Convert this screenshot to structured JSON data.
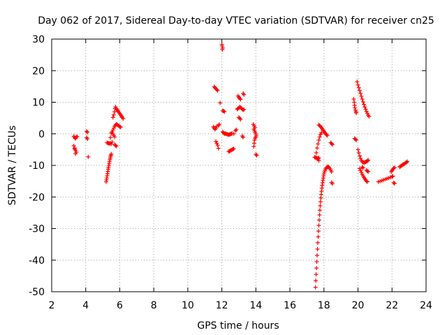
{
  "chart_data": {
    "type": "scatter",
    "title": "Day 062 of 2017, Sidereal Day-to-day VTEC variation (SDTVAR) for receiver cn25",
    "xlabel": "GPS time / hours",
    "ylabel": "SDTVAR / TECUs",
    "xlim": [
      2,
      24
    ],
    "ylim": [
      -50,
      30
    ],
    "xticks": [
      2,
      4,
      6,
      8,
      10,
      12,
      14,
      16,
      18,
      20,
      22,
      24
    ],
    "yticks": [
      -50,
      -40,
      -30,
      -20,
      -10,
      0,
      10,
      20,
      30
    ],
    "grid": true,
    "marker": "+",
    "color": "#ff0000",
    "series": [
      {
        "name": "SDTVAR",
        "points": [
          [
            3.3,
            -0.8
          ],
          [
            3.35,
            -1.2
          ],
          [
            3.4,
            -1.5
          ],
          [
            3.45,
            -1.0
          ],
          [
            3.5,
            -0.9
          ],
          [
            3.3,
            -3.8
          ],
          [
            3.35,
            -4.5
          ],
          [
            3.4,
            -5.2
          ],
          [
            3.45,
            -5.8
          ],
          [
            3.4,
            -6.3
          ],
          [
            3.35,
            -4.8
          ],
          [
            4.05,
            0.8
          ],
          [
            4.1,
            0.5
          ],
          [
            4.05,
            -1.2
          ],
          [
            4.1,
            -1.6
          ],
          [
            4.15,
            -7.3
          ],
          [
            5.2,
            -15.2
          ],
          [
            5.22,
            -14.6
          ],
          [
            5.24,
            -14.0
          ],
          [
            5.26,
            -13.3
          ],
          [
            5.28,
            -12.6
          ],
          [
            5.3,
            -11.9
          ],
          [
            5.32,
            -11.2
          ],
          [
            5.34,
            -10.6
          ],
          [
            5.36,
            -10.0
          ],
          [
            5.38,
            -9.4
          ],
          [
            5.4,
            -8.8
          ],
          [
            5.42,
            -8.2
          ],
          [
            5.44,
            -7.7
          ],
          [
            5.46,
            -7.2
          ],
          [
            5.48,
            -6.8
          ],
          [
            5.5,
            -6.4
          ],
          [
            5.25,
            -2.8
          ],
          [
            5.3,
            -2.9
          ],
          [
            5.35,
            -3.0
          ],
          [
            5.4,
            -3.1
          ],
          [
            5.45,
            -2.9
          ],
          [
            5.5,
            -3.2
          ],
          [
            5.55,
            -2.6
          ],
          [
            5.45,
            -1.2
          ],
          [
            5.5,
            0.2
          ],
          [
            5.55,
            0.6
          ],
          [
            5.6,
            0.0
          ],
          [
            5.65,
            -0.5
          ],
          [
            5.7,
            -1.0
          ],
          [
            5.6,
            1.2
          ],
          [
            5.65,
            1.8
          ],
          [
            5.7,
            2.4
          ],
          [
            5.75,
            2.8
          ],
          [
            5.8,
            3.0
          ],
          [
            5.85,
            2.9
          ],
          [
            5.9,
            2.7
          ],
          [
            5.95,
            2.5
          ],
          [
            6.0,
            2.3
          ],
          [
            6.05,
            2.1
          ],
          [
            5.7,
            -3.4
          ],
          [
            5.75,
            -3.7
          ],
          [
            5.8,
            -3.9
          ],
          [
            5.6,
            5.2
          ],
          [
            5.65,
            6.0
          ],
          [
            5.7,
            7.0
          ],
          [
            5.72,
            8.0
          ],
          [
            5.75,
            8.5
          ],
          [
            5.8,
            8.0
          ],
          [
            5.85,
            7.6
          ],
          [
            5.9,
            7.2
          ],
          [
            5.95,
            6.8
          ],
          [
            6.0,
            6.4
          ],
          [
            6.05,
            6.0
          ],
          [
            6.1,
            5.6
          ],
          [
            6.15,
            5.2
          ],
          [
            6.2,
            4.8
          ],
          [
            11.55,
            14.9
          ],
          [
            11.6,
            14.6
          ],
          [
            11.65,
            14.3
          ],
          [
            11.7,
            14.0
          ],
          [
            11.75,
            13.7
          ],
          [
            11.5,
            2.2
          ],
          [
            11.55,
            1.8
          ],
          [
            11.6,
            1.4
          ],
          [
            11.65,
            1.8
          ],
          [
            11.7,
            2.4
          ],
          [
            11.65,
            -2.4
          ],
          [
            11.7,
            -3.0
          ],
          [
            11.75,
            -3.6
          ],
          [
            11.8,
            -4.6
          ],
          [
            11.9,
            9.8
          ],
          [
            11.8,
            2.6
          ],
          [
            11.85,
            3.0
          ],
          [
            12.0,
            28.3
          ],
          [
            12.02,
            27.8
          ],
          [
            12.05,
            27.2
          ],
          [
            12.03,
            26.7
          ],
          [
            12.05,
            7.3
          ],
          [
            12.1,
            7.2
          ],
          [
            12.15,
            7.0
          ],
          [
            12.05,
            0.6
          ],
          [
            12.1,
            0.3
          ],
          [
            12.15,
            0.0
          ],
          [
            12.2,
            0.1
          ],
          [
            12.25,
            0.0
          ],
          [
            12.3,
            -0.1
          ],
          [
            12.35,
            -0.2
          ],
          [
            12.4,
            -0.3
          ],
          [
            12.45,
            -0.2
          ],
          [
            12.5,
            -0.1
          ],
          [
            12.55,
            0.0
          ],
          [
            12.6,
            0.1
          ],
          [
            12.7,
            0.0
          ],
          [
            12.4,
            -5.6
          ],
          [
            12.45,
            -5.5
          ],
          [
            12.5,
            -5.3
          ],
          [
            12.55,
            -5.2
          ],
          [
            12.6,
            -5.0
          ],
          [
            12.65,
            -4.9
          ],
          [
            12.7,
            -4.7
          ],
          [
            12.95,
            12.0
          ],
          [
            13.0,
            11.6
          ],
          [
            13.05,
            11.2
          ],
          [
            13.1,
            10.9
          ],
          [
            13.25,
            12.8
          ],
          [
            13.3,
            12.4
          ],
          [
            12.9,
            7.8
          ],
          [
            12.95,
            8.0
          ],
          [
            13.0,
            8.2
          ],
          [
            13.05,
            8.5
          ],
          [
            13.1,
            8.3
          ],
          [
            13.15,
            8.1
          ],
          [
            13.2,
            7.8
          ],
          [
            13.25,
            7.6
          ],
          [
            13.3,
            7.7
          ],
          [
            13.0,
            5.2
          ],
          [
            13.05,
            4.9
          ],
          [
            13.1,
            4.6
          ],
          [
            13.2,
            -0.7
          ],
          [
            13.25,
            -1.1
          ],
          [
            12.8,
            1.0
          ],
          [
            12.85,
            1.3
          ],
          [
            13.85,
            3.0
          ],
          [
            13.9,
            2.5
          ],
          [
            13.95,
            2.0
          ],
          [
            13.88,
            1.5
          ],
          [
            13.92,
            1.0
          ],
          [
            13.95,
            0.5
          ],
          [
            14.0,
            0.0
          ],
          [
            14.02,
            -0.5
          ],
          [
            14.0,
            -1.0
          ],
          [
            13.95,
            -1.4
          ],
          [
            13.92,
            -2.0
          ],
          [
            13.9,
            -3.0
          ],
          [
            13.88,
            -4.0
          ],
          [
            14.0,
            -6.5
          ],
          [
            14.05,
            -6.8
          ],
          [
            17.5,
            -48.6
          ],
          [
            17.52,
            -46.5
          ],
          [
            17.54,
            -44.5
          ],
          [
            17.56,
            -42.5
          ],
          [
            17.58,
            -40.5
          ],
          [
            17.6,
            -38.5
          ],
          [
            17.62,
            -36.5
          ],
          [
            17.64,
            -34.5
          ],
          [
            17.66,
            -32.6
          ],
          [
            17.68,
            -30.8
          ],
          [
            17.7,
            -29.0
          ],
          [
            17.72,
            -27.3
          ],
          [
            17.74,
            -25.7
          ],
          [
            17.76,
            -24.2
          ],
          [
            17.78,
            -22.8
          ],
          [
            17.8,
            -21.5
          ],
          [
            17.82,
            -20.3
          ],
          [
            17.84,
            -19.2
          ],
          [
            17.86,
            -18.2
          ],
          [
            17.88,
            -17.2
          ],
          [
            17.9,
            -16.3
          ],
          [
            17.92,
            -15.5
          ],
          [
            17.94,
            -14.7
          ],
          [
            17.96,
            -14.0
          ],
          [
            17.98,
            -13.3
          ],
          [
            18.0,
            -12.7
          ],
          [
            18.03,
            -12.1
          ],
          [
            18.06,
            -11.6
          ],
          [
            18.1,
            -11.1
          ],
          [
            18.15,
            -10.7
          ],
          [
            18.2,
            -10.5
          ],
          [
            18.25,
            -10.4
          ],
          [
            18.3,
            -10.6
          ],
          [
            18.35,
            -11.0
          ],
          [
            18.4,
            -11.5
          ],
          [
            18.45,
            -12.0
          ],
          [
            17.45,
            -7.4
          ],
          [
            17.5,
            -7.5
          ],
          [
            17.55,
            -7.6
          ],
          [
            17.6,
            -7.7
          ],
          [
            17.65,
            -7.8
          ],
          [
            17.7,
            -7.6
          ],
          [
            17.55,
            -6.0
          ],
          [
            17.6,
            -4.5
          ],
          [
            17.65,
            -3.2
          ],
          [
            17.7,
            -2.0
          ],
          [
            17.75,
            -1.0
          ],
          [
            17.8,
            -0.2
          ],
          [
            17.85,
            0.3
          ],
          [
            17.7,
            2.8
          ],
          [
            17.75,
            2.6
          ],
          [
            17.8,
            2.3
          ],
          [
            17.85,
            2.0
          ],
          [
            17.9,
            1.6
          ],
          [
            17.95,
            1.2
          ],
          [
            18.0,
            0.8
          ],
          [
            18.05,
            0.4
          ],
          [
            18.1,
            0.0
          ],
          [
            18.15,
            -0.3
          ],
          [
            18.2,
            -0.5
          ],
          [
            17.65,
            -8.0
          ],
          [
            17.7,
            -8.5
          ],
          [
            18.4,
            -2.8
          ],
          [
            18.45,
            -3.1
          ],
          [
            18.5,
            -3.4
          ],
          [
            18.45,
            -15.4
          ],
          [
            18.5,
            -15.8
          ],
          [
            19.8,
            -1.5
          ],
          [
            19.85,
            -1.7
          ],
          [
            19.9,
            -2.0
          ],
          [
            19.75,
            11.0
          ],
          [
            19.78,
            10.0
          ],
          [
            19.8,
            9.0
          ],
          [
            19.82,
            8.2
          ],
          [
            19.85,
            7.5
          ],
          [
            19.88,
            7.0
          ],
          [
            19.9,
            6.6
          ],
          [
            19.95,
            16.5
          ],
          [
            20.0,
            15.5
          ],
          [
            20.05,
            14.6
          ],
          [
            20.1,
            13.7
          ],
          [
            20.15,
            12.8
          ],
          [
            20.2,
            11.9
          ],
          [
            20.25,
            11.0
          ],
          [
            20.3,
            10.1
          ],
          [
            20.35,
            9.3
          ],
          [
            20.4,
            8.5
          ],
          [
            20.45,
            7.8
          ],
          [
            20.5,
            7.1
          ],
          [
            20.55,
            6.5
          ],
          [
            20.6,
            5.9
          ],
          [
            20.65,
            5.5
          ],
          [
            20.0,
            -5.0
          ],
          [
            20.05,
            -6.0
          ],
          [
            20.1,
            -7.0
          ],
          [
            20.15,
            -7.8
          ],
          [
            20.2,
            -8.4
          ],
          [
            20.25,
            -8.8
          ],
          [
            20.3,
            -9.0
          ],
          [
            20.35,
            -9.1
          ],
          [
            20.4,
            -9.0
          ],
          [
            20.45,
            -8.9
          ],
          [
            20.5,
            -8.8
          ],
          [
            20.55,
            -8.6
          ],
          [
            20.6,
            -8.3
          ],
          [
            20.1,
            -11.0
          ],
          [
            20.15,
            -11.6
          ],
          [
            20.2,
            -12.2
          ],
          [
            20.25,
            -12.8
          ],
          [
            20.3,
            -13.3
          ],
          [
            20.35,
            -13.8
          ],
          [
            20.4,
            -14.2
          ],
          [
            20.45,
            -14.6
          ],
          [
            20.5,
            -15.0
          ],
          [
            20.55,
            -15.2
          ],
          [
            20.25,
            -10.5
          ],
          [
            20.3,
            -10.8
          ],
          [
            20.5,
            -11.5
          ],
          [
            20.55,
            -11.8
          ],
          [
            20.6,
            -12.0
          ],
          [
            21.2,
            -15.2
          ],
          [
            21.3,
            -15.0
          ],
          [
            21.4,
            -14.8
          ],
          [
            21.5,
            -14.6
          ],
          [
            21.6,
            -14.4
          ],
          [
            21.7,
            -14.2
          ],
          [
            21.8,
            -14.0
          ],
          [
            21.9,
            -13.8
          ],
          [
            22.0,
            -13.6
          ],
          [
            22.05,
            -13.4
          ],
          [
            21.95,
            -12.0
          ],
          [
            22.0,
            -11.6
          ],
          [
            22.05,
            -11.2
          ],
          [
            22.1,
            -10.9
          ],
          [
            22.15,
            -10.7
          ],
          [
            22.1,
            -15.5
          ],
          [
            22.15,
            -15.7
          ],
          [
            22.45,
            -10.5
          ],
          [
            22.5,
            -10.3
          ],
          [
            22.55,
            -10.1
          ],
          [
            22.6,
            -9.9
          ],
          [
            22.65,
            -9.7
          ],
          [
            22.7,
            -9.6
          ],
          [
            22.75,
            -9.4
          ],
          [
            22.8,
            -9.2
          ],
          [
            22.85,
            -9.0
          ],
          [
            22.9,
            -8.8
          ]
        ]
      }
    ]
  }
}
